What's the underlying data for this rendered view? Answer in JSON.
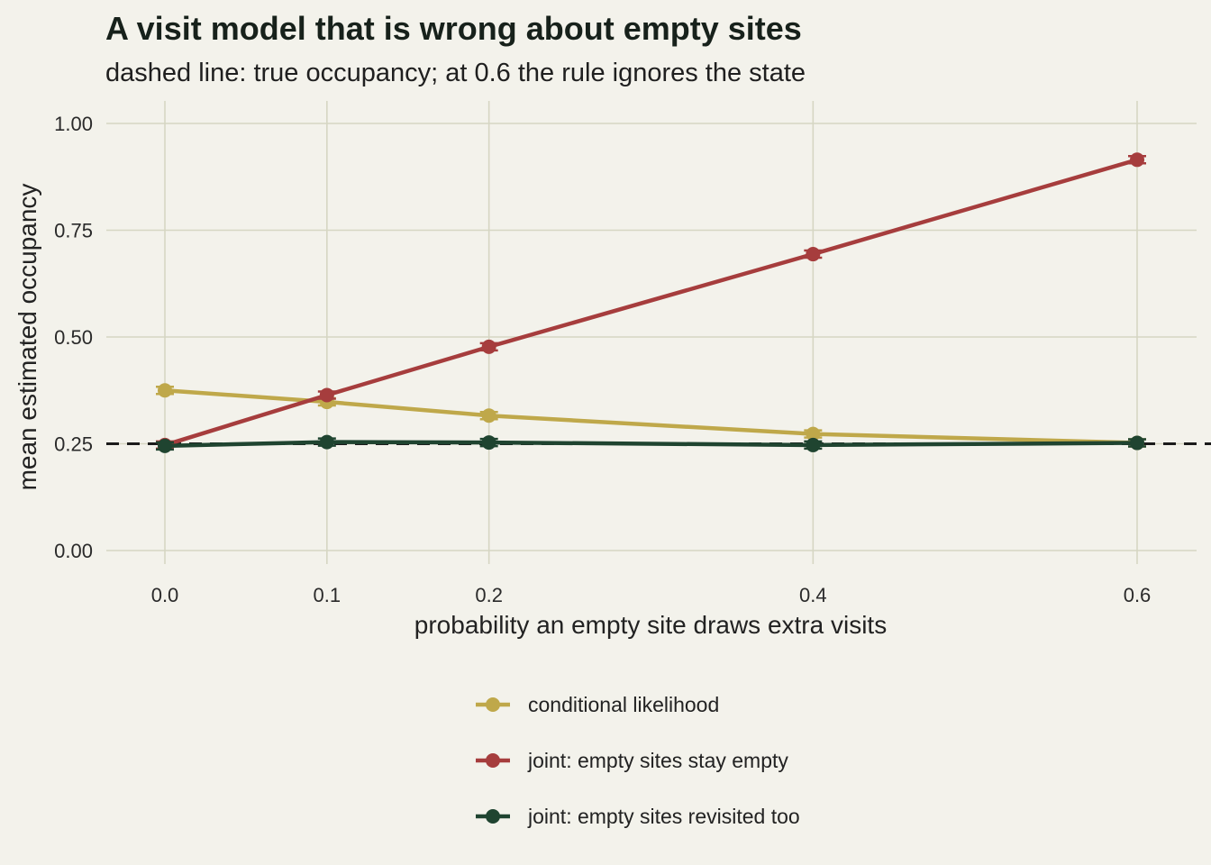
{
  "chart_data": {
    "type": "line",
    "title": "A visit model that is wrong about empty sites",
    "subtitle": "dashed line: true occupancy; at 0.6 the rule ignores the state",
    "xlabel": "probability an empty site draws extra visits",
    "ylabel": "mean estimated occupancy",
    "x": [
      0.0,
      0.1,
      0.2,
      0.4,
      0.6
    ],
    "x_tick_labels": [
      "0.0",
      "0.1",
      "0.2",
      "0.4",
      "0.6"
    ],
    "y_ticks": [
      0.0,
      0.25,
      0.5,
      0.75,
      1.0
    ],
    "y_tick_labels": [
      "0.00",
      "0.25",
      "0.50",
      "0.75",
      "1.00"
    ],
    "xlim": [
      -0.036,
      0.61
    ],
    "ylim": [
      -0.03,
      1.05
    ],
    "grid": true,
    "legend_position": "bottom",
    "reference_line": {
      "y": 0.25,
      "style": "dashed",
      "color": "#1b1b1b"
    },
    "series": [
      {
        "name": "conditional likelihood",
        "color": "#bfa84a",
        "values": [
          0.375,
          0.348,
          0.316,
          0.273,
          0.252
        ]
      },
      {
        "name": "joint: empty sites stay empty",
        "color": "#a63d3d",
        "values": [
          0.247,
          0.364,
          0.477,
          0.694,
          0.915
        ]
      },
      {
        "name": "joint: empty sites revisited too",
        "color": "#1f4430",
        "values": [
          0.245,
          0.254,
          0.253,
          0.247,
          0.252
        ]
      }
    ]
  }
}
